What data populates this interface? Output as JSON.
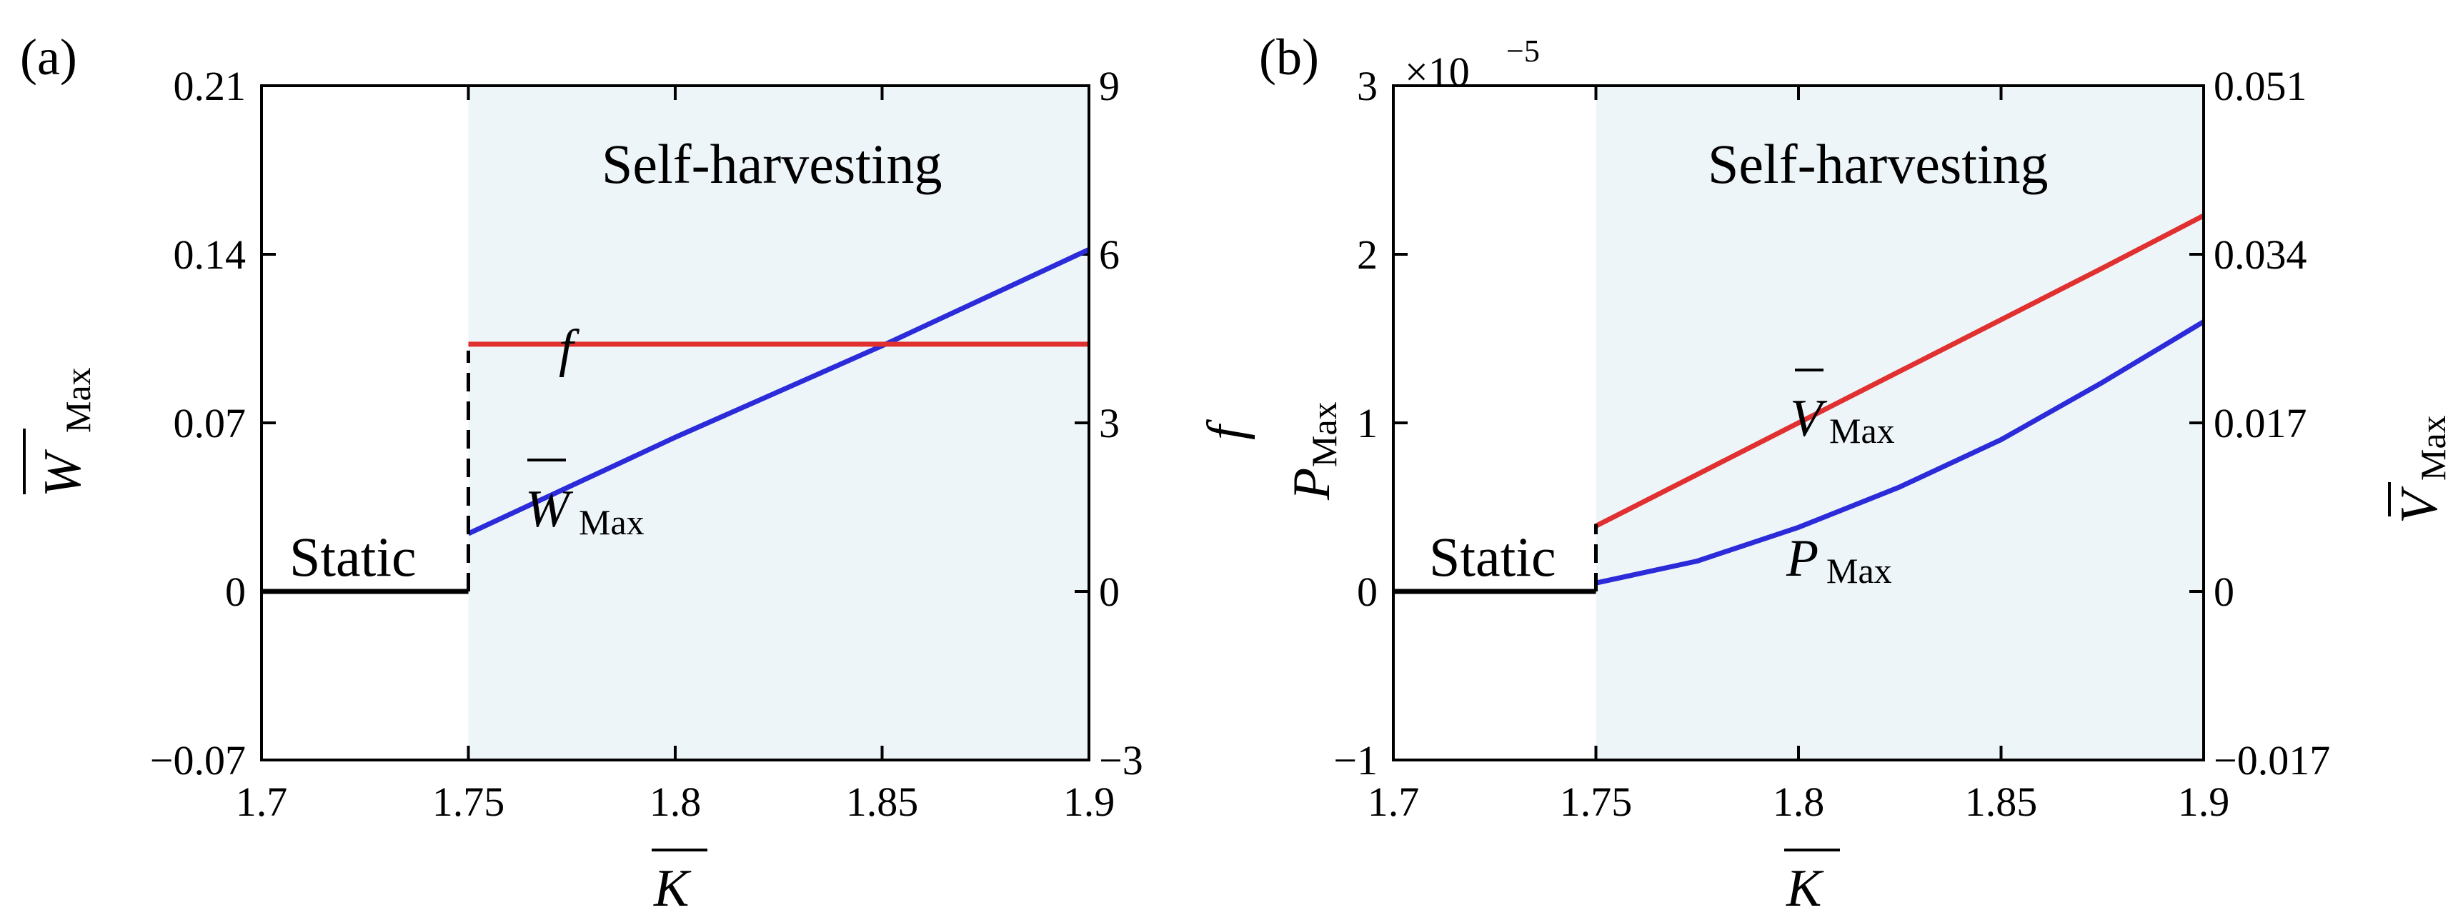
{
  "chart_data": [
    {
      "type": "line",
      "panel_label": "(a)",
      "xlabel": "K",
      "ylabel_left": "W",
      "ylabel_left_sub": "Max",
      "ylabel_right": "f",
      "xlim": [
        1.7,
        1.9
      ],
      "ylim_left": [
        -0.07,
        0.21
      ],
      "ylim_right": [
        -3,
        9
      ],
      "xticks": [
        1.7,
        1.75,
        1.8,
        1.85,
        1.9
      ],
      "xtick_labels": [
        "1.7",
        "1.75",
        "1.8",
        "1.85",
        "1.9"
      ],
      "yticks_left": [
        -0.07,
        0,
        0.07,
        0.14,
        0.21
      ],
      "ytick_labels_left": [
        "−0.07",
        "0",
        "0.07",
        "0.14",
        "0.21"
      ],
      "yticks_right": [
        -3,
        0,
        3,
        6,
        9
      ],
      "ytick_labels_right": [
        "−3",
        "0",
        "3",
        "6",
        "9"
      ],
      "shaded_region": {
        "x_start": 1.75,
        "x_end": 1.9,
        "color": "#eef5f9"
      },
      "region_labels": {
        "static": "Static",
        "harvest": "Self-harvesting"
      },
      "series": [
        {
          "name": "W",
          "name_sub": "Max",
          "axis": "left",
          "color": "#2b2bd9",
          "x": [
            1.75,
            1.775,
            1.8,
            1.825,
            1.85,
            1.875,
            1.9
          ],
          "y": [
            0.024,
            0.044,
            0.064,
            0.083,
            0.102,
            0.122,
            0.142
          ]
        },
        {
          "name": "f",
          "axis": "right",
          "color": "#e03030",
          "x": [
            1.75,
            1.8,
            1.85,
            1.9
          ],
          "y": [
            4.4,
            4.4,
            4.4,
            4.4
          ]
        },
        {
          "name": "Static",
          "axis": "left",
          "color": "#000000",
          "x": [
            1.7,
            1.75
          ],
          "y": [
            0,
            0
          ]
        }
      ],
      "transition": {
        "x": 1.75,
        "y_from": 0,
        "y_to": 0.1,
        "style": "dashed"
      }
    },
    {
      "type": "line",
      "panel_label": "(b)",
      "xlabel": "K",
      "ylabel_left": "P",
      "ylabel_left_sub": "Max",
      "ylabel_right": "V",
      "ylabel_right_sub": "Max",
      "exponent_label": "×10",
      "exponent_power": "−5",
      "xlim": [
        1.7,
        1.9
      ],
      "ylim_left": [
        -1,
        3
      ],
      "ylim_right": [
        -0.017,
        0.051
      ],
      "xticks": [
        1.7,
        1.75,
        1.8,
        1.85,
        1.9
      ],
      "xtick_labels": [
        "1.7",
        "1.75",
        "1.8",
        "1.85",
        "1.9"
      ],
      "yticks_left": [
        -1,
        0,
        1,
        2,
        3
      ],
      "ytick_labels_left": [
        "−1",
        "0",
        "1",
        "2",
        "3"
      ],
      "yticks_right": [
        -0.017,
        0,
        0.017,
        0.034,
        0.051
      ],
      "ytick_labels_right": [
        "−0.017",
        "0",
        "0.017",
        "0.034",
        "0.051"
      ],
      "shaded_region": {
        "x_start": 1.75,
        "x_end": 1.9,
        "color": "#eef5f9"
      },
      "region_labels": {
        "static": "Static",
        "harvest": "Self-harvesting"
      },
      "series": [
        {
          "name": "P",
          "name_sub": "Max",
          "axis": "left",
          "color": "#2b2bd9",
          "x": [
            1.75,
            1.775,
            1.8,
            1.825,
            1.85,
            1.875,
            1.9
          ],
          "y": [
            0.05,
            0.18,
            0.38,
            0.62,
            0.9,
            1.24,
            1.6
          ]
        },
        {
          "name": "V",
          "name_sub": "Max",
          "axis": "right",
          "color": "#e03030",
          "x": [
            1.75,
            1.775,
            1.8,
            1.825,
            1.85,
            1.875,
            1.9
          ],
          "y": [
            0.0066,
            0.0118,
            0.017,
            0.0222,
            0.0274,
            0.0326,
            0.0379
          ]
        },
        {
          "name": "Static",
          "axis": "left",
          "color": "#000000",
          "x": [
            1.7,
            1.75
          ],
          "y": [
            0,
            0
          ]
        }
      ],
      "transition": {
        "x": 1.75,
        "y_from": 0,
        "y_to": 0.4,
        "style": "dashed"
      }
    }
  ]
}
